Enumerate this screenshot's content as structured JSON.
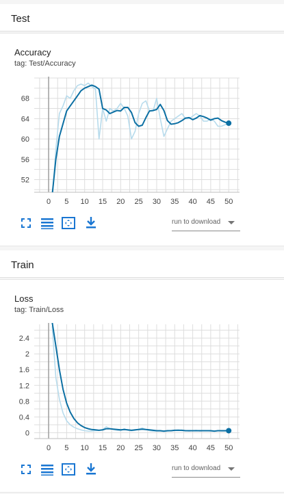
{
  "groups": [
    {
      "name": "Test"
    },
    {
      "name": "Train"
    }
  ],
  "charts": [
    {
      "title": "Accuracy",
      "tag": "tag: Test/Accuracy",
      "download_label": "run to download"
    },
    {
      "title": "Loss",
      "tag": "tag: Train/Loss",
      "download_label": "run to download"
    }
  ],
  "colors": {
    "smoothed": "#0b6fa3",
    "raw": "#b7dbec",
    "grid": "#dddddd",
    "axis": "#9e9e9e",
    "icon": "#1976d2"
  },
  "icons": [
    "fullscreen-icon",
    "toggle-y-log-icon",
    "fit-domain-icon",
    "download-icon"
  ],
  "chart_data": [
    {
      "type": "line",
      "title": "Accuracy",
      "xlim": [
        -4,
        53
      ],
      "ylim": [
        49.5,
        72
      ],
      "x_ticks": [
        0,
        5,
        10,
        15,
        20,
        25,
        30,
        35,
        40,
        45,
        50
      ],
      "y_ticks": [
        52,
        56,
        60,
        64,
        68
      ],
      "grid": true,
      "series": [
        {
          "role": "raw",
          "x": [
            1,
            2,
            3,
            4,
            5,
            6,
            7,
            8,
            9,
            10,
            11,
            12,
            13,
            14,
            15,
            16,
            17,
            18,
            19,
            20,
            21,
            22,
            23,
            24,
            25,
            26,
            27,
            28,
            29,
            30,
            31,
            32,
            33,
            34,
            35,
            36,
            37,
            38,
            39,
            40,
            41,
            42,
            43,
            44,
            45,
            46,
            47,
            48,
            49,
            50
          ],
          "y": [
            48,
            58,
            65,
            66.5,
            68.5,
            68,
            69.5,
            70.5,
            70.8,
            70.5,
            71,
            70.3,
            69.8,
            60,
            66,
            63.5,
            66,
            65.5,
            66,
            67,
            66,
            64.5,
            60,
            61.5,
            65,
            67,
            67.5,
            65.5,
            65.5,
            68,
            64,
            60.5,
            62,
            63.5,
            64,
            64.5,
            65,
            64,
            64,
            64.5,
            65,
            64.5,
            63.5,
            63.5,
            64,
            63.5,
            62.5,
            62.5,
            62.8,
            63
          ]
        },
        {
          "role": "smoothed",
          "x": [
            1,
            2,
            3,
            4,
            5,
            6,
            7,
            8,
            9,
            10,
            11,
            12,
            13,
            14,
            15,
            16,
            17,
            18,
            19,
            20,
            21,
            22,
            23,
            24,
            25,
            26,
            27,
            28,
            29,
            30,
            31,
            32,
            33,
            34,
            35,
            36,
            37,
            38,
            39,
            40,
            41,
            42,
            43,
            44,
            45,
            46,
            47,
            48,
            49,
            50
          ],
          "y": [
            49,
            56,
            60.5,
            63,
            65.5,
            66.5,
            67.5,
            68.5,
            69.5,
            70,
            70.3,
            70.6,
            70.3,
            69.8,
            66,
            65.7,
            65,
            65.3,
            65.6,
            65.5,
            66.2,
            66.2,
            65.2,
            63.2,
            62.5,
            62.7,
            64.2,
            65.5,
            65.6,
            65.8,
            66.8,
            65.6,
            63.6,
            62.9,
            63,
            63.2,
            63.6,
            64.1,
            64.2,
            63.8,
            64.1,
            64.6,
            64.4,
            64.1,
            63.7,
            64,
            64.1,
            63.6,
            63.3,
            63.1
          ]
        }
      ]
    },
    {
      "type": "line",
      "title": "Loss",
      "xlim": [
        -4,
        53
      ],
      "ylim": [
        -0.15,
        2.75
      ],
      "x_ticks": [
        0,
        5,
        10,
        15,
        20,
        25,
        30,
        35,
        40,
        45,
        50
      ],
      "y_ticks": [
        0,
        0.4,
        0.8,
        1.2,
        1.6,
        2,
        2.4
      ],
      "grid": true,
      "series": [
        {
          "role": "raw",
          "x": [
            1,
            2,
            3,
            4,
            5,
            6,
            7,
            8,
            9,
            10,
            11,
            12,
            13,
            14,
            15,
            16,
            17,
            18,
            19,
            20,
            21,
            22,
            23,
            24,
            25,
            26,
            27,
            28,
            29,
            30,
            31,
            32,
            33,
            34,
            35,
            36,
            37,
            38,
            39,
            40,
            41,
            42,
            43,
            44,
            45,
            46,
            47,
            48,
            49,
            50
          ],
          "y": [
            2.7,
            1.4,
            0.85,
            0.5,
            0.3,
            0.2,
            0.14,
            0.1,
            0.07,
            0.05,
            0.04,
            0.04,
            0.05,
            0.06,
            0.08,
            0.15,
            0.1,
            0.08,
            0.06,
            0.05,
            0.1,
            0.06,
            0.05,
            0.06,
            0.09,
            0.12,
            0.08,
            0.05,
            0.04,
            0.04,
            0.04,
            0.03,
            0.04,
            0.05,
            0.06,
            0.07,
            0.05,
            0.05,
            0.04,
            0.05,
            0.06,
            0.04,
            0.05,
            0.05,
            0.04,
            0.04,
            0.05,
            0.04,
            0.04,
            0.05
          ]
        },
        {
          "role": "smoothed",
          "x": [
            1,
            2,
            3,
            4,
            5,
            6,
            7,
            8,
            9,
            10,
            11,
            12,
            13,
            14,
            15,
            16,
            17,
            18,
            19,
            20,
            21,
            22,
            23,
            24,
            25,
            26,
            27,
            28,
            29,
            30,
            31,
            32,
            33,
            34,
            35,
            36,
            37,
            38,
            39,
            40,
            41,
            42,
            43,
            44,
            45,
            46,
            47,
            48,
            49,
            50
          ],
          "y": [
            2.8,
            2.2,
            1.6,
            1.1,
            0.75,
            0.52,
            0.36,
            0.25,
            0.18,
            0.13,
            0.1,
            0.08,
            0.07,
            0.06,
            0.07,
            0.1,
            0.1,
            0.09,
            0.08,
            0.07,
            0.08,
            0.07,
            0.06,
            0.07,
            0.08,
            0.09,
            0.08,
            0.07,
            0.06,
            0.05,
            0.05,
            0.04,
            0.05,
            0.05,
            0.06,
            0.06,
            0.06,
            0.05,
            0.05,
            0.05,
            0.05,
            0.05,
            0.05,
            0.05,
            0.05,
            0.04,
            0.05,
            0.05,
            0.05,
            0.05
          ]
        }
      ]
    }
  ]
}
